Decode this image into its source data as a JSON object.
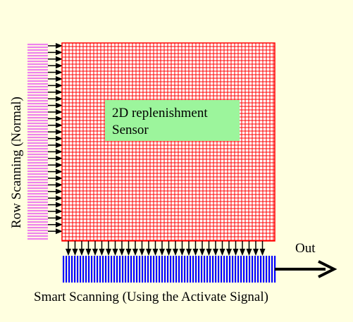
{
  "sensor_label_line1": "2D replenishment",
  "sensor_label_line2": "Sensor",
  "row_scanning_label": "Row Scanning (Normal)",
  "smart_scanning_label": "Smart Scanning (Using the Activate Signal)",
  "out_label": "Out",
  "colors": {
    "background": "#ffffe0",
    "sensor_grid": "#ff0000",
    "sensor_label_box": "#9cf59c",
    "row_scanner": "#ee82ee",
    "column_scanner": "#0000ff",
    "arrows": "#000000"
  }
}
